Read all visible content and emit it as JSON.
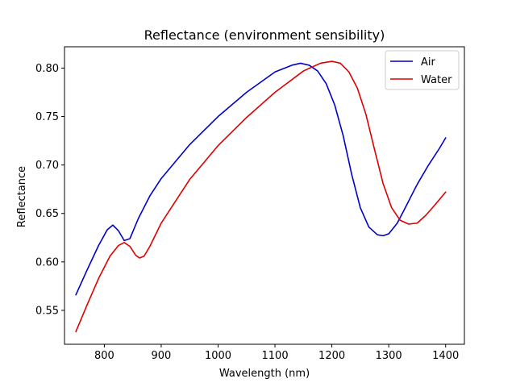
{
  "chart_data": {
    "type": "line",
    "title": "Reflectance (environment sensibility)",
    "xlabel": "Wavelength (nm)",
    "ylabel": "Reflectance",
    "xlim": [
      730,
      1433
    ],
    "ylim": [
      0.515,
      0.822
    ],
    "xticks": [
      800,
      900,
      1000,
      1100,
      1200,
      1300,
      1400
    ],
    "xtick_labels": [
      "800",
      "900",
      "1000",
      "1100",
      "1200",
      "1300",
      "1400"
    ],
    "yticks": [
      0.55,
      0.6,
      0.65,
      0.7,
      0.75,
      0.8
    ],
    "ytick_labels": [
      "0.55",
      "0.60",
      "0.65",
      "0.70",
      "0.75",
      "0.80"
    ],
    "grid": false,
    "legend": {
      "position": "top-right"
    },
    "series": [
      {
        "name": "Air",
        "color": "#0000cc",
        "x": [
          750,
          770,
          790,
          805,
          815,
          825,
          835,
          845,
          860,
          880,
          900,
          950,
          1000,
          1050,
          1100,
          1130,
          1145,
          1160,
          1175,
          1190,
          1205,
          1220,
          1235,
          1250,
          1265,
          1280,
          1290,
          1300,
          1315,
          1330,
          1350,
          1370,
          1390,
          1400
        ],
        "y": [
          0.566,
          0.592,
          0.617,
          0.633,
          0.638,
          0.632,
          0.622,
          0.624,
          0.645,
          0.668,
          0.686,
          0.721,
          0.75,
          0.775,
          0.796,
          0.803,
          0.805,
          0.803,
          0.797,
          0.784,
          0.762,
          0.73,
          0.69,
          0.656,
          0.636,
          0.628,
          0.627,
          0.629,
          0.64,
          0.657,
          0.68,
          0.7,
          0.718,
          0.728
        ]
      },
      {
        "name": "Water",
        "color": "#dd0000",
        "x": [
          750,
          770,
          790,
          810,
          825,
          835,
          845,
          855,
          862,
          870,
          880,
          900,
          950,
          1000,
          1050,
          1100,
          1150,
          1180,
          1200,
          1215,
          1230,
          1245,
          1260,
          1275,
          1290,
          1305,
          1320,
          1335,
          1350,
          1365,
          1380,
          1400
        ],
        "y": [
          0.528,
          0.556,
          0.583,
          0.606,
          0.617,
          0.62,
          0.616,
          0.607,
          0.604,
          0.606,
          0.616,
          0.64,
          0.685,
          0.72,
          0.749,
          0.775,
          0.797,
          0.805,
          0.807,
          0.805,
          0.796,
          0.779,
          0.752,
          0.716,
          0.681,
          0.656,
          0.643,
          0.639,
          0.64,
          0.648,
          0.658,
          0.672
        ]
      }
    ]
  }
}
